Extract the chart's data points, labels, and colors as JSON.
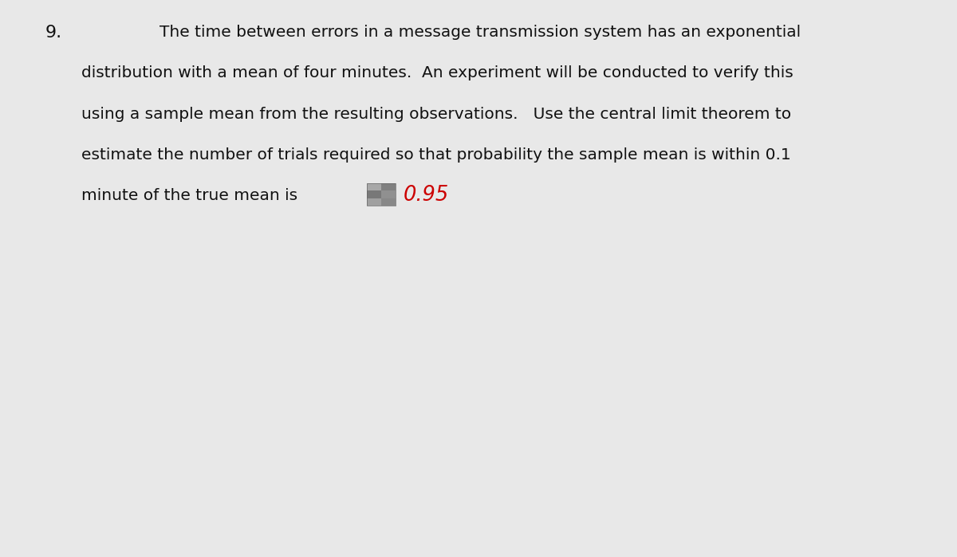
{
  "number": "9.",
  "line1": "The time between errors in a message transmission system has an exponential",
  "line2": "distribution with a mean of four minutes.  An experiment will be conducted to verify this",
  "line3": "using a sample mean from the resulting observations.   Use the central limit theorem to",
  "line4": "estimate the number of trials required so that probability the sample mean is within 0.1",
  "line5_part1": "minute of the true mean is ",
  "line5_red": "0.95",
  "background_color": "#e8e8e8",
  "text_color": "#111111",
  "red_color": "#cc0000",
  "font_size": 14.5,
  "number_font_size": 16,
  "fig_width": 12.0,
  "fig_height": 6.99
}
